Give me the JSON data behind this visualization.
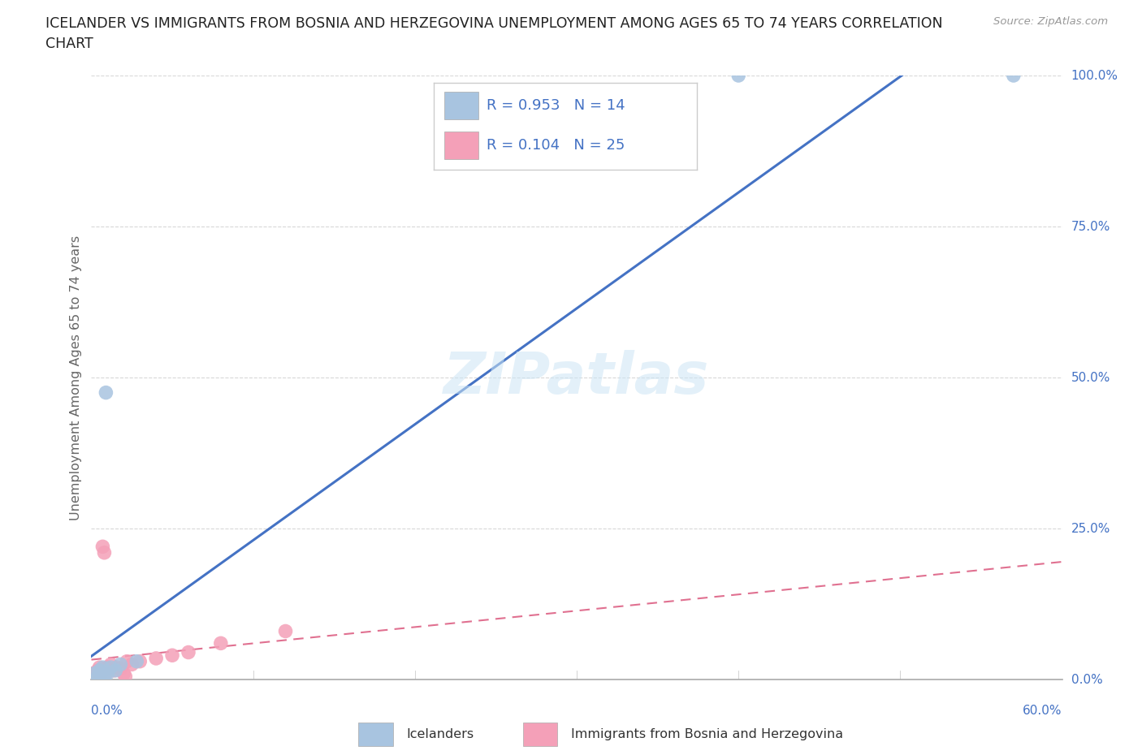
{
  "title_line1": "ICELANDER VS IMMIGRANTS FROM BOSNIA AND HERZEGOVINA UNEMPLOYMENT AMONG AGES 65 TO 74 YEARS CORRELATION",
  "title_line2": "CHART",
  "source_text": "Source: ZipAtlas.com",
  "ylabel": "Unemployment Among Ages 65 to 74 years",
  "series1_name": "Icelanders",
  "series1_color": "#a8c4e0",
  "series1_R": 0.953,
  "series1_N": 14,
  "series2_name": "Immigrants from Bosnia and Herzegovina",
  "series2_color": "#f4a0b8",
  "series2_R": 0.104,
  "series2_N": 25,
  "icelander_x": [
    0.2,
    0.4,
    0.5,
    0.6,
    0.7,
    0.8,
    0.9,
    1.0,
    1.2,
    1.5,
    1.8,
    2.8,
    40.0,
    57.0
  ],
  "icelander_y": [
    1.0,
    0.5,
    1.5,
    1.0,
    2.0,
    0.5,
    47.5,
    1.0,
    2.0,
    1.5,
    2.5,
    3.0,
    100.0,
    100.0
  ],
  "bosnia_x": [
    0.0,
    0.1,
    0.2,
    0.3,
    0.4,
    0.5,
    0.6,
    0.7,
    0.8,
    0.9,
    1.0,
    1.2,
    1.4,
    1.6,
    1.8,
    2.0,
    2.1,
    2.2,
    2.5,
    3.0,
    4.0,
    5.0,
    6.0,
    8.0,
    12.0
  ],
  "bosnia_y": [
    0.5,
    1.0,
    0.5,
    1.0,
    1.5,
    2.0,
    1.5,
    22.0,
    21.0,
    1.0,
    2.0,
    2.5,
    1.5,
    2.0,
    1.8,
    1.0,
    0.5,
    3.0,
    2.5,
    3.0,
    3.5,
    4.0,
    4.5,
    6.0,
    8.0
  ],
  "watermark": "ZIPatlas",
  "line1_color": "#4472c4",
  "line2_color": "#e07090",
  "legend_text_color": "#4472c4",
  "axis_label_color": "#4472c4",
  "ytick_labels": [
    "0.0%",
    "25.0%",
    "50.0%",
    "75.0%",
    "100.0%"
  ],
  "ytick_values": [
    0,
    25,
    50,
    75,
    100
  ],
  "xtick_positions": [
    0,
    10,
    20,
    30,
    40,
    50,
    60
  ],
  "xlim": [
    0,
    60
  ],
  "ylim": [
    0,
    100
  ],
  "background_color": "#ffffff",
  "grid_color": "#d8d8d8"
}
